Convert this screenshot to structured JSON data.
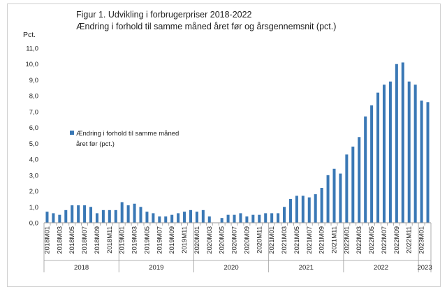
{
  "chart_data": {
    "type": "bar",
    "title_line1": "Figur 1. Udvikling i forbrugerpriser 2018-2022",
    "title_line2": "Ændring i forhold til samme måned året før og årsgennemsnit (pct.)",
    "ylabel": "Pct.",
    "ylim": [
      0,
      11
    ],
    "yticks": [
      "0,0",
      "1,0",
      "2,0",
      "3,0",
      "4,0",
      "5,0",
      "6,0",
      "7,0",
      "8,0",
      "9,0",
      "10,0",
      "11,0"
    ],
    "grid": false,
    "legend_position": "left",
    "series": [
      {
        "name_line1": "Ændring i forhold til samme måned",
        "name_line2": "året før (pct.)",
        "color": "#3a78b5",
        "values": [
          0.7,
          0.6,
          0.5,
          0.8,
          1.1,
          1.1,
          1.1,
          1.0,
          0.6,
          0.8,
          0.8,
          0.8,
          1.3,
          1.1,
          1.2,
          1.0,
          0.7,
          0.6,
          0.4,
          0.4,
          0.5,
          0.6,
          0.7,
          0.8,
          0.7,
          0.8,
          0.4,
          0.0,
          0.3,
          0.5,
          0.5,
          0.6,
          0.4,
          0.5,
          0.5,
          0.6,
          0.6,
          0.6,
          1.0,
          1.5,
          1.7,
          1.7,
          1.6,
          1.8,
          2.2,
          3.0,
          3.4,
          3.1,
          4.3,
          4.8,
          5.4,
          6.7,
          7.4,
          8.2,
          8.7,
          8.9,
          10.0,
          10.1,
          8.9,
          8.7,
          7.7,
          7.6
        ]
      }
    ],
    "x_tick_labels": [
      {
        "index": 0,
        "label": "2018M01"
      },
      {
        "index": 2,
        "label": "2018M03"
      },
      {
        "index": 4,
        "label": "2018M05"
      },
      {
        "index": 6,
        "label": "2018M07"
      },
      {
        "index": 8,
        "label": "2018M09"
      },
      {
        "index": 10,
        "label": "2018M11"
      },
      {
        "index": 12,
        "label": "2019M01"
      },
      {
        "index": 14,
        "label": "2019M03"
      },
      {
        "index": 16,
        "label": "2019M05"
      },
      {
        "index": 18,
        "label": "2019M07"
      },
      {
        "index": 20,
        "label": "2019M09"
      },
      {
        "index": 22,
        "label": "2019M11"
      },
      {
        "index": 24,
        "label": "2020M01"
      },
      {
        "index": 26,
        "label": "2020M03"
      },
      {
        "index": 28,
        "label": "2020M05"
      },
      {
        "index": 30,
        "label": "2020M07"
      },
      {
        "index": 32,
        "label": "2020M09"
      },
      {
        "index": 34,
        "label": "2020M11"
      },
      {
        "index": 36,
        "label": "2021M01"
      },
      {
        "index": 38,
        "label": "2021M03"
      },
      {
        "index": 40,
        "label": "2021M05"
      },
      {
        "index": 42,
        "label": "2021M07"
      },
      {
        "index": 44,
        "label": "2021M09"
      },
      {
        "index": 46,
        "label": "2021M11"
      },
      {
        "index": 48,
        "label": "2022M01"
      },
      {
        "index": 50,
        "label": "2022M03"
      },
      {
        "index": 52,
        "label": "2022M05"
      },
      {
        "index": 54,
        "label": "2022M07"
      },
      {
        "index": 56,
        "label": "2022M09"
      },
      {
        "index": 58,
        "label": "2022M11"
      },
      {
        "index": 60,
        "label": "2023M01"
      }
    ],
    "year_groups": [
      {
        "label": "2018",
        "start": 0,
        "count": 12
      },
      {
        "label": "2019",
        "start": 12,
        "count": 12
      },
      {
        "label": "2020",
        "start": 24,
        "count": 12
      },
      {
        "label": "2021",
        "start": 36,
        "count": 12
      },
      {
        "label": "2022",
        "start": 48,
        "count": 12
      },
      {
        "label": "2023",
        "start": 60,
        "count": 2
      }
    ]
  }
}
